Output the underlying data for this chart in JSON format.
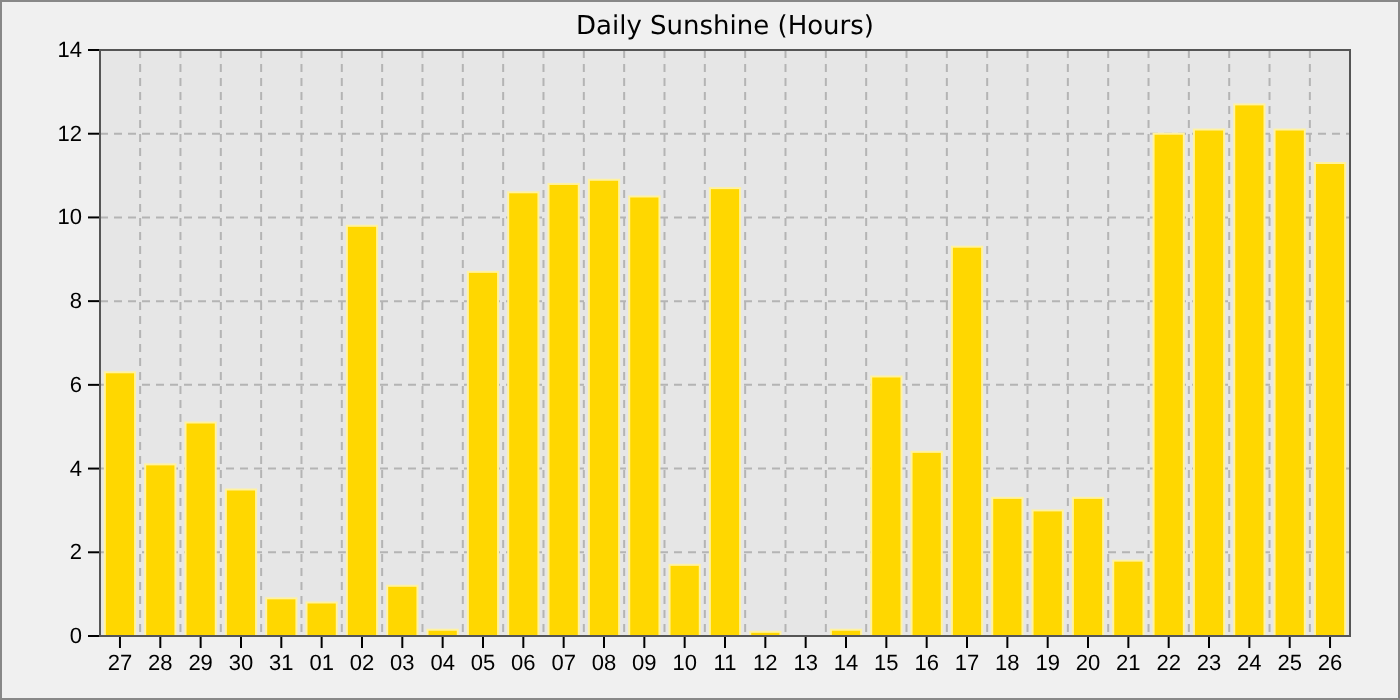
{
  "chart_data": {
    "type": "bar",
    "title": "Daily Sunshine (Hours)",
    "categories": [
      "27",
      "28",
      "29",
      "30",
      "31",
      "01",
      "02",
      "03",
      "04",
      "05",
      "06",
      "07",
      "08",
      "09",
      "10",
      "11",
      "12",
      "13",
      "14",
      "15",
      "16",
      "17",
      "18",
      "19",
      "20",
      "21",
      "22",
      "23",
      "24",
      "25",
      "26"
    ],
    "values": [
      6.3,
      4.1,
      5.1,
      3.5,
      0.9,
      0.8,
      9.8,
      1.2,
      0.15,
      8.7,
      10.6,
      10.8,
      10.9,
      10.5,
      1.7,
      10.7,
      0.1,
      0,
      0.15,
      6.2,
      4.4,
      9.3,
      3.3,
      3.0,
      3.3,
      1.8,
      12.0,
      12.1,
      12.7,
      12.1,
      11.3
    ],
    "color": "#ffd700",
    "ylim": [
      0,
      14
    ],
    "yticks": [
      0,
      2,
      4,
      6,
      8,
      10,
      12,
      14
    ],
    "grid": true
  }
}
